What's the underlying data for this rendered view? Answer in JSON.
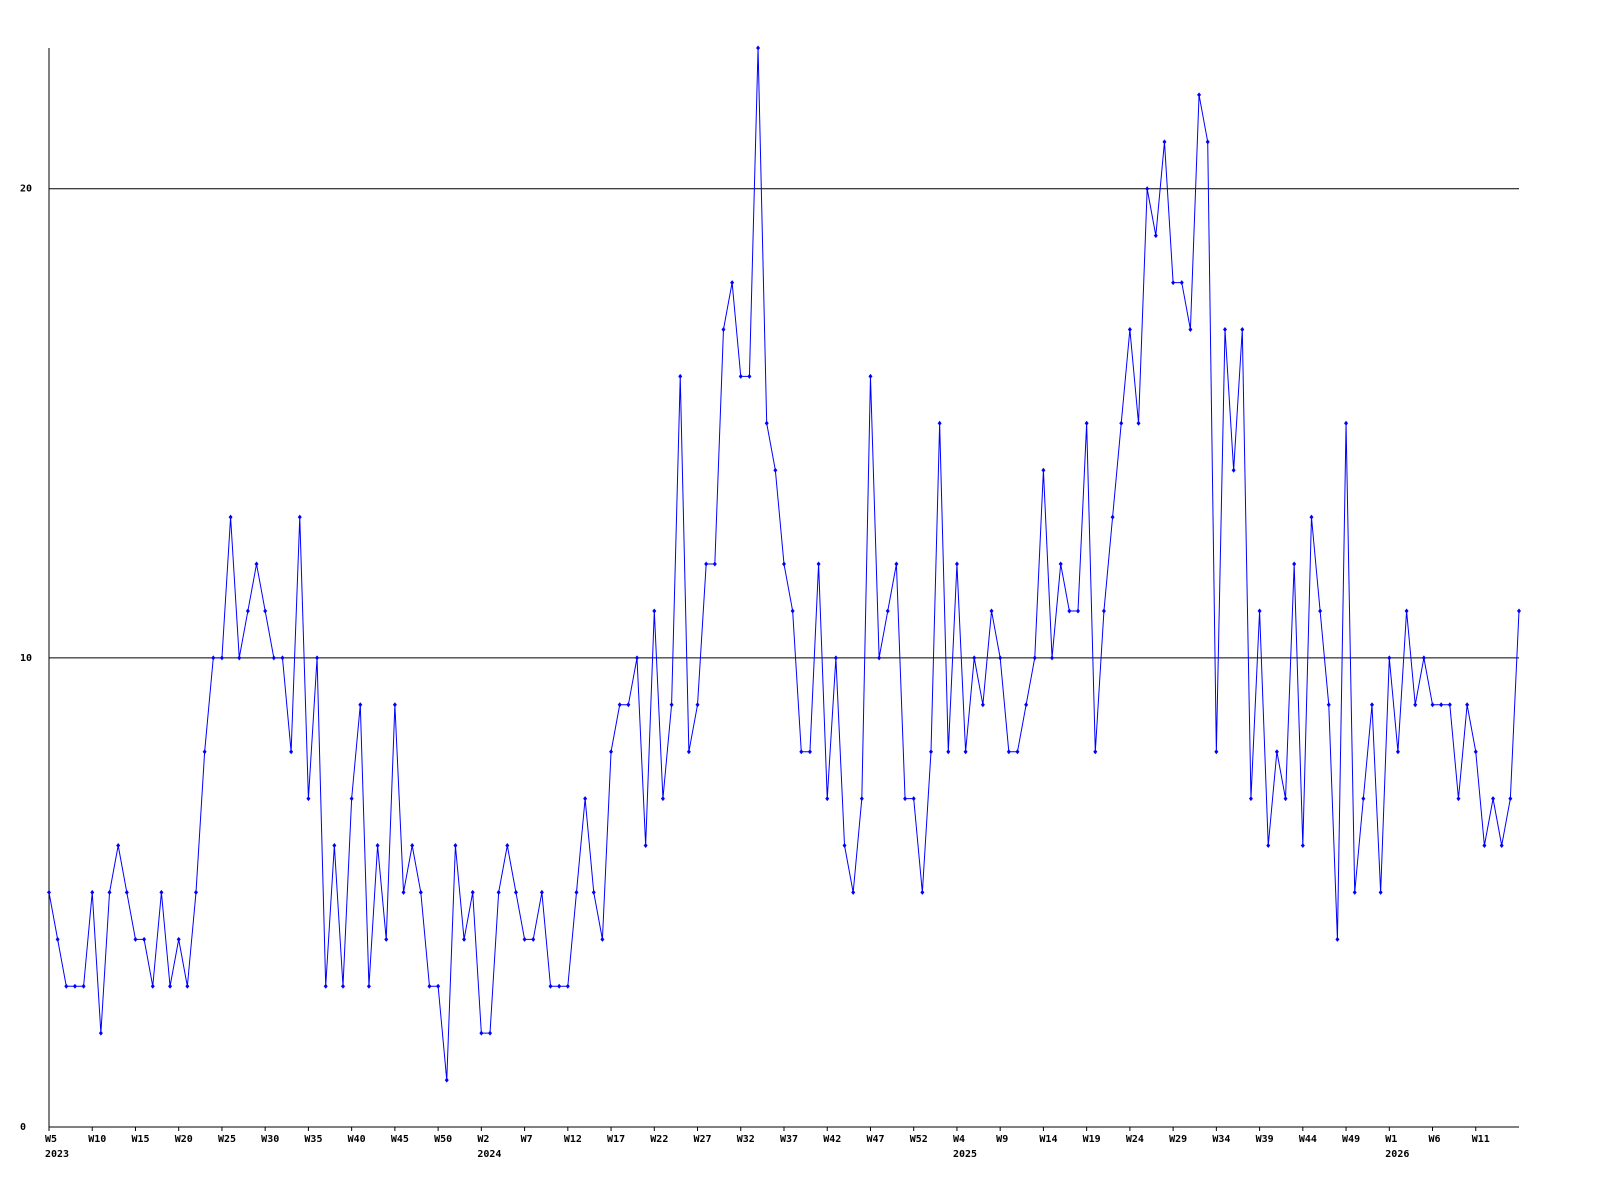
{
  "chart_data": {
    "type": "line",
    "categories": [
      "W5",
      null,
      null,
      null,
      null,
      "W10",
      null,
      null,
      null,
      null,
      "W15",
      null,
      null,
      null,
      null,
      "W20",
      null,
      null,
      null,
      null,
      "W25",
      null,
      null,
      null,
      null,
      "W30",
      null,
      null,
      null,
      null,
      "W35",
      null,
      null,
      null,
      null,
      "W40",
      null,
      null,
      null,
      null,
      "W45",
      null,
      null,
      null,
      null,
      "W50",
      null,
      null,
      null,
      null,
      "W2",
      null,
      null,
      null,
      null,
      "W7",
      null,
      null,
      null,
      null,
      "W12",
      null,
      null,
      null,
      null,
      "W17",
      null,
      null,
      null,
      null,
      "W22",
      null,
      null,
      null,
      null,
      "W27",
      null,
      null,
      null,
      null,
      "W32",
      null,
      null,
      null,
      null,
      "W37",
      null,
      null,
      null,
      null,
      "W42",
      null,
      null,
      null,
      null,
      "W47",
      null,
      null,
      null,
      null,
      "W52",
      null,
      null,
      null,
      null,
      "W4",
      null,
      null,
      null,
      null,
      "W9",
      null,
      null,
      null,
      null,
      "W14",
      null,
      null,
      null,
      null,
      "W19",
      null,
      null,
      null,
      null,
      "W24",
      null,
      null,
      null,
      null,
      "W29",
      null,
      null,
      null,
      null,
      "W34",
      null,
      null,
      null,
      null,
      "W39",
      null,
      null,
      null,
      null,
      "W44",
      null,
      null,
      null,
      null,
      "W49",
      null,
      null,
      null,
      null,
      "W1",
      null,
      null,
      null,
      null,
      "W6",
      null,
      null,
      null,
      null,
      "W11",
      null,
      null,
      null,
      null,
      null
    ],
    "x_year_labels": [
      "2023",
      null,
      null,
      null,
      null,
      null,
      null,
      null,
      null,
      null,
      null,
      null,
      null,
      null,
      null,
      null,
      null,
      null,
      null,
      null,
      null,
      null,
      null,
      null,
      null,
      null,
      null,
      null,
      null,
      null,
      null,
      null,
      null,
      null,
      null,
      null,
      null,
      null,
      null,
      null,
      null,
      null,
      null,
      null,
      null,
      null,
      null,
      null,
      null,
      null,
      "2024",
      null,
      null,
      null,
      null,
      null,
      null,
      null,
      null,
      null,
      null,
      null,
      null,
      null,
      null,
      null,
      null,
      null,
      null,
      null,
      null,
      null,
      null,
      null,
      null,
      null,
      null,
      null,
      null,
      null,
      null,
      null,
      null,
      null,
      null,
      null,
      null,
      null,
      null,
      null,
      null,
      null,
      null,
      null,
      null,
      null,
      null,
      null,
      null,
      null,
      null,
      null,
      null,
      null,
      null,
      "2025",
      null,
      null,
      null,
      null,
      null,
      null,
      null,
      null,
      null,
      null,
      null,
      null,
      null,
      null,
      null,
      null,
      null,
      null,
      null,
      null,
      null,
      null,
      null,
      null,
      null,
      null,
      null,
      null,
      null,
      null,
      null,
      null,
      null,
      null,
      null,
      null,
      null,
      null,
      null,
      null,
      null,
      null,
      null,
      null,
      null,
      null,
      null,
      null,
      null,
      "2026",
      null,
      null,
      null,
      null,
      null,
      null,
      null,
      null,
      null,
      null,
      null,
      null,
      null,
      null,
      null
    ],
    "series": [
      {
        "color": "#0000ff",
        "values": [
          5,
          4,
          3,
          3,
          3,
          5,
          2,
          5,
          6,
          5,
          4,
          4,
          3,
          5,
          3,
          4,
          3,
          5,
          8,
          10,
          10,
          13,
          10,
          11,
          12,
          11,
          10,
          10,
          8,
          13,
          7,
          10,
          3,
          6,
          3,
          7,
          9,
          3,
          6,
          4,
          9,
          5,
          6,
          5,
          3,
          3,
          1,
          6,
          4,
          5,
          2,
          2,
          5,
          6,
          5,
          4,
          4,
          5,
          3,
          3,
          3,
          5,
          7,
          5,
          4,
          8,
          9,
          9,
          10,
          6,
          11,
          7,
          9,
          16,
          8,
          9,
          12,
          12,
          17,
          18,
          16,
          16,
          23,
          15,
          14,
          12,
          11,
          8,
          8,
          12,
          7,
          10,
          6,
          5,
          7,
          16,
          10,
          11,
          12,
          7,
          7,
          5,
          8,
          15,
          8,
          12,
          8,
          10,
          9,
          11,
          10,
          8,
          8,
          9,
          10,
          14,
          10,
          12,
          11,
          11,
          15,
          8,
          11,
          13,
          15,
          17,
          15,
          20,
          19,
          21,
          18,
          18,
          17,
          22,
          21,
          8,
          17,
          14,
          17,
          7,
          11,
          6,
          8,
          7,
          12,
          6,
          13,
          11,
          9,
          4,
          15,
          5,
          7,
          9,
          5,
          10,
          8,
          11,
          9,
          10,
          9,
          9,
          9,
          7,
          9,
          8,
          6,
          7,
          6,
          7,
          11
        ]
      }
    ],
    "ylim": [
      0,
      23
    ],
    "yticks": [
      0,
      10,
      20
    ],
    "grid": true
  }
}
